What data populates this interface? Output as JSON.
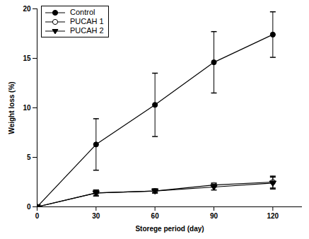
{
  "chart_data": {
    "type": "line",
    "x_label": "Storege period (day)",
    "y_label": "Weight loss (%)",
    "x": [
      0,
      30,
      60,
      90,
      120
    ],
    "xlim": [
      0,
      135
    ],
    "xticks": [
      0,
      30,
      60,
      90,
      120
    ],
    "ylim": [
      0,
      20
    ],
    "yticks": [
      0,
      5,
      10,
      15,
      20
    ],
    "legend": "top-left",
    "series": [
      {
        "name": "Control",
        "color": "#000000",
        "marker": "circle",
        "line_style": "solid",
        "values": [
          0,
          6.3,
          10.3,
          14.6,
          17.4
        ],
        "errors": [
          0,
          2.6,
          3.2,
          3.1,
          2.3
        ]
      },
      {
        "name": "PUCAH 1",
        "color": "#000000",
        "marker": "open-circle",
        "line_style": "solid",
        "values": [
          0,
          1.4,
          1.6,
          2.2,
          2.5
        ],
        "errors": [
          0,
          0.3,
          0.2,
          0.2,
          0.6
        ]
      },
      {
        "name": "PUCAH 2",
        "color": "#000000",
        "marker": "triangle-down",
        "line_style": "solid",
        "values": [
          0,
          1.4,
          1.6,
          2.0,
          2.4
        ],
        "errors": [
          0,
          0.3,
          0.2,
          0.3,
          0.6
        ]
      }
    ]
  }
}
